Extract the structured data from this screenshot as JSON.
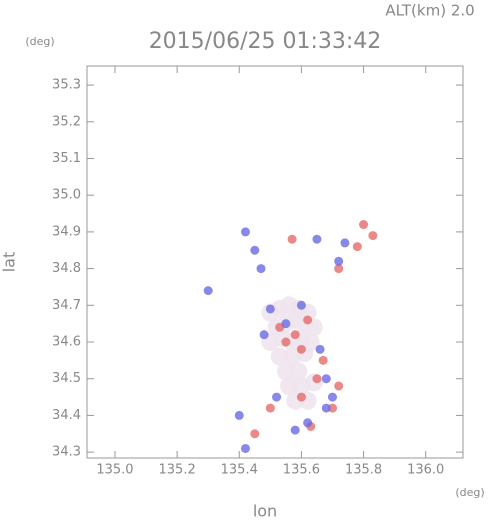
{
  "chart_data": {
    "type": "scatter",
    "title": "2015/06/25 01:33:42",
    "annotation": "ALT(km) 2.0",
    "y_unit": "(deg)",
    "x_unit": "(deg)",
    "xlabel": "lon",
    "ylabel": "lat",
    "xlim": [
      134.91,
      136.12
    ],
    "ylim": [
      34.284,
      35.352
    ],
    "xticks": [
      {
        "value": 135,
        "label": "135.0"
      },
      135.2,
      135.4,
      135.6,
      135.8,
      {
        "value": 136,
        "label": "136.0"
      }
    ],
    "yticks": [
      34.3,
      34.4,
      34.5,
      34.6,
      34.7,
      34.8,
      34.9,
      {
        "value": 35,
        "label": "35.0"
      },
      35.1,
      35.2,
      35.3
    ],
    "series": [
      {
        "color": "#efe4ee",
        "x": [
          135.5,
          135.53,
          135.56,
          135.59,
          135.62,
          135.52,
          135.55,
          135.58,
          135.61,
          135.64,
          135.5,
          135.54,
          135.57,
          135.6,
          135.63,
          135.53,
          135.57,
          135.61,
          135.55,
          135.59,
          135.56,
          135.6,
          135.64,
          135.58,
          135.62
        ],
        "y": [
          34.68,
          34.69,
          34.7,
          34.69,
          34.68,
          34.64,
          34.65,
          34.66,
          34.65,
          34.64,
          34.6,
          34.61,
          34.6,
          34.61,
          34.6,
          34.56,
          34.56,
          34.57,
          34.52,
          34.52,
          34.48,
          34.48,
          34.49,
          34.44,
          34.44
        ]
      },
      {
        "color": "#e66a6a",
        "x": [
          135.8,
          135.83,
          135.72,
          135.78,
          135.58,
          135.6,
          135.55,
          135.62,
          135.65,
          135.72,
          135.45,
          135.5,
          135.6,
          135.57,
          135.67,
          135.53,
          135.7,
          135.63
        ],
        "y": [
          34.92,
          34.89,
          34.8,
          34.86,
          34.62,
          34.58,
          34.6,
          34.66,
          34.5,
          34.48,
          34.35,
          34.42,
          34.45,
          34.88,
          34.55,
          34.64,
          34.42,
          34.37
        ]
      },
      {
        "color": "#6a6ae6",
        "x": [
          135.4,
          135.42,
          135.52,
          135.62,
          135.68,
          135.7,
          135.55,
          135.45,
          135.65,
          135.3,
          135.48,
          135.6,
          135.42,
          135.68,
          135.72,
          135.47,
          135.66,
          135.58,
          135.5,
          135.74
        ],
        "y": [
          34.4,
          34.31,
          34.45,
          34.38,
          34.42,
          34.45,
          34.65,
          34.85,
          34.88,
          34.74,
          34.62,
          34.7,
          34.9,
          34.5,
          34.82,
          34.8,
          34.58,
          34.36,
          34.69,
          34.87
        ]
      }
    ]
  }
}
